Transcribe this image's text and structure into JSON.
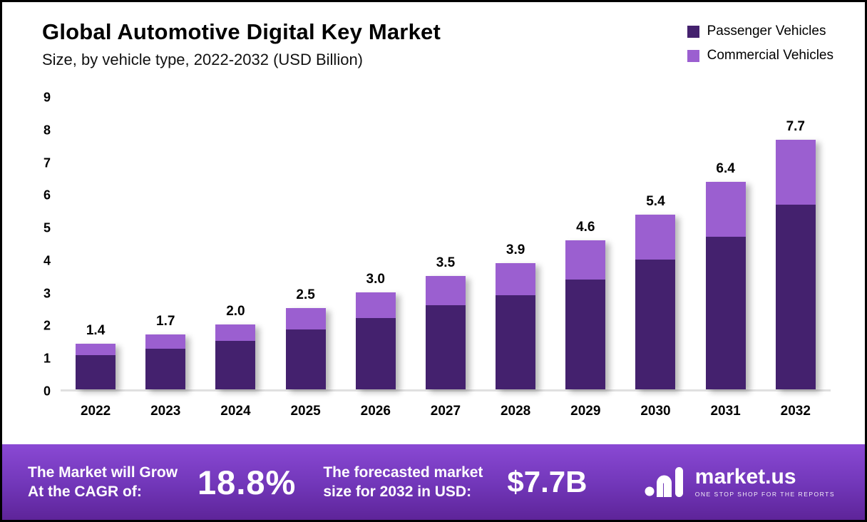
{
  "header": {
    "title": "Global Automotive Digital Key Market",
    "subtitle": "Size, by vehicle type, 2022-2032 (USD Billion)"
  },
  "legend": [
    {
      "label": "Passenger Vehicles",
      "color": "#44216e"
    },
    {
      "label": "Commercial Vehicles",
      "color": "#9b5fd0"
    }
  ],
  "chart_data": {
    "type": "bar",
    "stacked": true,
    "title": "Global Automotive Digital Key Market Size, by vehicle type, 2022-2032 (USD Billion)",
    "categories": [
      "2022",
      "2023",
      "2024",
      "2025",
      "2026",
      "2027",
      "2028",
      "2029",
      "2030",
      "2031",
      "2032"
    ],
    "series": [
      {
        "name": "Passenger Vehicles",
        "color": "#44216e",
        "values": [
          1.05,
          1.25,
          1.5,
          1.85,
          2.2,
          2.6,
          2.9,
          3.4,
          4.0,
          4.7,
          5.7
        ]
      },
      {
        "name": "Commercial Vehicles",
        "color": "#9b5fd0",
        "values": [
          0.35,
          0.45,
          0.5,
          0.65,
          0.8,
          0.9,
          1.0,
          1.2,
          1.4,
          1.7,
          2.0
        ]
      }
    ],
    "totals": [
      "1.4",
      "1.7",
      "2.0",
      "2.5",
      "3.0",
      "3.5",
      "3.9",
      "4.6",
      "5.4",
      "6.4",
      "7.7"
    ],
    "ylim": [
      0,
      9
    ],
    "yticks": [
      0,
      1,
      2,
      3,
      4,
      5,
      6,
      7,
      8,
      9
    ],
    "grid": false,
    "legend_position": "top-right",
    "xlabel": "",
    "ylabel": ""
  },
  "footer": {
    "cagr_label_line1": "The Market will Grow",
    "cagr_label_line2": "At the CAGR of:",
    "cagr_value": "18.8%",
    "forecast_label_line1": "The forecasted market",
    "forecast_label_line2": "size for 2032 in USD:",
    "forecast_value": "$7.7B",
    "brand_name": "market.us",
    "brand_tagline": "ONE STOP SHOP FOR THE REPORTS"
  }
}
